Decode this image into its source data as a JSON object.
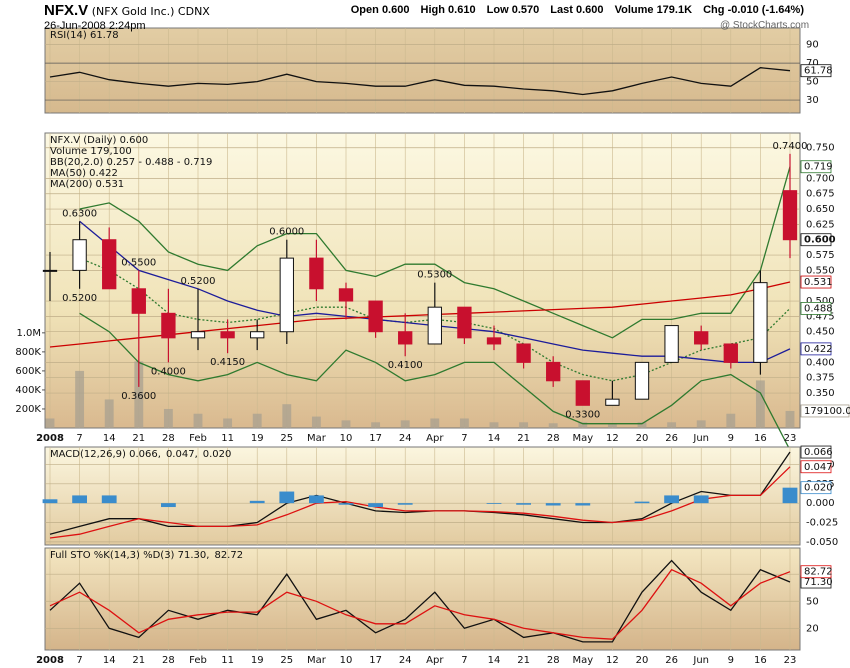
{
  "header": {
    "symbol": "NFX.V",
    "name": "(NFX Gold Inc.)",
    "exchange": "CDNX",
    "date": "26-Jun-2008 2:24pm",
    "quote": [
      [
        "Open",
        "0.600"
      ],
      [
        "High",
        "0.610"
      ],
      [
        "Low",
        "0.570"
      ],
      [
        "Last",
        "0.600"
      ],
      [
        "Volume",
        "179.1K"
      ],
      [
        "Chg",
        "-0.010 (-1.64%)"
      ]
    ],
    "watermark": "@ StockCharts.com"
  },
  "chart_data": [
    {
      "type": "line",
      "title": "RSI(14) 61.78",
      "ylim": [
        16,
        108
      ],
      "yticks": [
        30,
        50,
        70,
        90
      ],
      "grid": true,
      "series": [
        {
          "kind": "line",
          "color": "#111111",
          "end_label": "61.78",
          "values": [
            55,
            60,
            52,
            48,
            45,
            48,
            47,
            50,
            58,
            50,
            48,
            45,
            45,
            52,
            46,
            45,
            42,
            40,
            36,
            40,
            48,
            55,
            48,
            45,
            65,
            61.78
          ]
        }
      ]
    },
    {
      "type": "candlestick",
      "title": "NFX.V (Daily) 0.600",
      "legend": "stacked",
      "grid": true,
      "x_labels": true,
      "categories": [
        "2008",
        "7",
        "14",
        "21",
        "28",
        "Feb",
        "11",
        "19",
        "25",
        "Mar",
        "10",
        "17",
        "24",
        "Apr",
        "7",
        "14",
        "21",
        "28",
        "May",
        "12",
        "20",
        "26",
        "Jun",
        "9",
        "16",
        "23"
      ],
      "open": [
        0.55,
        0.55,
        0.6,
        0.52,
        0.48,
        0.44,
        0.45,
        0.44,
        0.45,
        0.57,
        0.52,
        0.5,
        0.45,
        0.43,
        0.49,
        0.44,
        0.43,
        0.4,
        0.37,
        0.33,
        0.34,
        0.4,
        0.45,
        0.43,
        0.4,
        0.68
      ],
      "high": [
        0.58,
        0.63,
        0.62,
        0.55,
        0.52,
        0.52,
        0.47,
        0.47,
        0.6,
        0.6,
        0.53,
        0.5,
        0.48,
        0.53,
        0.49,
        0.46,
        0.43,
        0.41,
        0.37,
        0.37,
        0.4,
        0.46,
        0.46,
        0.43,
        0.55,
        0.74
      ],
      "low": [
        0.5,
        0.52,
        0.52,
        0.36,
        0.4,
        0.42,
        0.415,
        0.42,
        0.43,
        0.5,
        0.47,
        0.44,
        0.41,
        0.43,
        0.43,
        0.42,
        0.39,
        0.36,
        0.33,
        0.33,
        0.34,
        0.4,
        0.42,
        0.39,
        0.38,
        0.57
      ],
      "close": [
        0.55,
        0.6,
        0.52,
        0.48,
        0.44,
        0.45,
        0.44,
        0.45,
        0.57,
        0.52,
        0.5,
        0.45,
        0.43,
        0.49,
        0.44,
        0.43,
        0.4,
        0.37,
        0.33,
        0.34,
        0.4,
        0.46,
        0.43,
        0.4,
        0.53,
        0.6
      ],
      "close_label": "0.600",
      "high_labels": [
        null,
        "0.6300",
        null,
        "0.5500",
        null,
        "0.5200",
        null,
        null,
        "0.6000",
        null,
        null,
        null,
        null,
        "0.5300",
        null,
        null,
        null,
        null,
        null,
        null,
        null,
        null,
        null,
        null,
        null,
        "0.7400"
      ],
      "low_labels": [
        null,
        "0.5200",
        null,
        "0.3600",
        "0.4000",
        null,
        "0.4150",
        null,
        null,
        null,
        null,
        null,
        "0.4100",
        null,
        null,
        null,
        null,
        null,
        "0.3300",
        null,
        null,
        null,
        null,
        null,
        null,
        null
      ],
      "ylim": [
        0.293,
        0.774
      ],
      "yticks": [
        {
          "value": 0.35,
          "label": "0.350"
        },
        0.375,
        {
          "value": 0.4,
          "label": "0.400"
        },
        {
          "value": 0.45,
          "label": "0.450"
        },
        0.475,
        {
          "value": 0.5,
          "label": "0.500"
        },
        {
          "value": 0.55,
          "label": "0.550"
        },
        0.575,
        0.625,
        {
          "value": 0.65,
          "label": "0.650"
        },
        0.675,
        {
          "value": 0.7,
          "label": "0.700"
        },
        {
          "value": 0.75,
          "label": "0.750"
        }
      ],
      "y2lim": [
        0,
        3100000
      ],
      "y2ticks": [
        {
          "value": 200000,
          "label": "200K"
        },
        {
          "value": 400000,
          "label": "400K"
        },
        {
          "value": 600000,
          "label": "600K"
        },
        {
          "value": 800000,
          "label": "800K"
        },
        {
          "value": 1000000,
          "label": "1.0M"
        }
      ],
      "series": [
        {
          "name": "Volume 179,100",
          "kind": "bar",
          "axis": "y2",
          "color": "#a8a090",
          "end_label": "179100.0",
          "values": [
            100000,
            600000,
            300000,
            700000,
            200000,
            150000,
            100000,
            150000,
            250000,
            120000,
            80000,
            60000,
            80000,
            100000,
            100000,
            60000,
            60000,
            50000,
            60000,
            40000,
            60000,
            60000,
            80000,
            150000,
            500000,
            179100
          ]
        },
        {
          "name": "BB(20,2.0) 0.257 - 0.488 - 0.719",
          "kind": "line",
          "color": "#2f7a2f",
          "end_label": "0.719",
          "values": [
            null,
            0.65,
            0.66,
            0.63,
            0.58,
            0.56,
            0.55,
            0.59,
            0.61,
            0.61,
            0.55,
            0.54,
            0.56,
            0.56,
            0.53,
            0.52,
            0.5,
            0.48,
            0.46,
            0.44,
            0.47,
            0.47,
            0.48,
            0.48,
            0.55,
            0.719
          ]
        },
        {
          "kind": "line",
          "color": "#2f7a2f",
          "dash": true,
          "end_label": "0.488",
          "values": [
            null,
            0.57,
            0.55,
            0.52,
            0.48,
            0.47,
            0.465,
            0.47,
            0.48,
            0.49,
            0.49,
            0.47,
            0.465,
            0.47,
            0.465,
            0.455,
            0.43,
            0.4,
            0.38,
            0.37,
            0.38,
            0.4,
            0.42,
            0.43,
            0.44,
            0.488
          ]
        },
        {
          "kind": "line",
          "color": "#2f7a2f",
          "values": [
            null,
            0.48,
            0.45,
            0.4,
            0.38,
            0.37,
            0.38,
            0.4,
            0.38,
            0.37,
            0.42,
            0.4,
            0.37,
            0.38,
            0.4,
            0.4,
            0.36,
            0.32,
            0.3,
            0.3,
            0.3,
            0.33,
            0.37,
            0.38,
            0.35,
            0.257
          ]
        },
        {
          "name": "MA(50) 0.422",
          "kind": "line",
          "color": "#1c1c9a",
          "end_label": "0.422",
          "values": [
            null,
            0.63,
            0.59,
            0.55,
            0.535,
            0.52,
            0.5,
            0.485,
            0.475,
            0.48,
            0.475,
            0.47,
            0.465,
            0.46,
            0.455,
            0.45,
            0.44,
            0.43,
            0.42,
            0.415,
            0.41,
            0.41,
            0.405,
            0.4,
            0.4,
            0.422
          ]
        },
        {
          "name": "MA(200) 0.531",
          "kind": "line",
          "color": "#cc0000",
          "end_label": "0.531",
          "values": [
            0.425,
            0.43,
            0.435,
            0.44,
            0.445,
            0.45,
            0.455,
            0.46,
            0.465,
            0.47,
            0.472,
            0.474,
            0.476,
            0.478,
            0.48,
            0.482,
            0.484,
            0.486,
            0.488,
            0.49,
            0.495,
            0.5,
            0.505,
            0.51,
            0.52,
            0.531
          ]
        }
      ]
    },
    {
      "type": "line",
      "legend": "inline",
      "grid": true,
      "ylim": [
        -0.054,
        0.0725
      ],
      "yticks": [
        {
          "value": -0.05,
          "label": "-0.050"
        },
        -0.025,
        {
          "value": 0,
          "label": "0.000"
        },
        0.025,
        {
          "value": 0.05,
          "label": "0.050"
        }
      ],
      "series": [
        {
          "name": "MACD(12,26,9) 0.066,",
          "kind": "line",
          "color": "#111111",
          "end_label": "0.066",
          "values": [
            -0.04,
            -0.03,
            -0.02,
            -0.02,
            -0.03,
            -0.03,
            -0.03,
            -0.025,
            0,
            0.01,
            0,
            -0.01,
            -0.012,
            -0.01,
            -0.01,
            -0.012,
            -0.015,
            -0.02,
            -0.025,
            -0.025,
            -0.02,
            0,
            0.015,
            0.01,
            0.01,
            0.066
          ]
        },
        {
          "name": "0.047,",
          "kind": "line",
          "color": "#dd1111",
          "end_label": "0.047",
          "values": [
            -0.045,
            -0.04,
            -0.03,
            -0.02,
            -0.025,
            -0.03,
            -0.03,
            -0.028,
            -0.015,
            0,
            0.002,
            -0.005,
            -0.01,
            -0.01,
            -0.01,
            -0.011,
            -0.013,
            -0.017,
            -0.022,
            -0.025,
            -0.022,
            -0.01,
            0.005,
            0.01,
            0.01,
            0.047
          ]
        },
        {
          "name": "0.020",
          "kind": "bar",
          "color": "#3a8ccc",
          "end_label": "0.020",
          "values": [
            0.005,
            0.01,
            0.01,
            0,
            -0.005,
            0,
            0,
            0.003,
            0.015,
            0.01,
            -0.002,
            -0.005,
            -0.002,
            0,
            0,
            -0.001,
            -0.002,
            -0.003,
            -0.003,
            0,
            0.002,
            0.01,
            0.01,
            0,
            0,
            0.02
          ]
        }
      ]
    },
    {
      "type": "line",
      "legend": "inline",
      "grid": true,
      "x_labels": true,
      "ylim": [
        -4,
        109
      ],
      "yticks": [
        20,
        50,
        80
      ],
      "series": [
        {
          "name": "Full STO %K(14,3) %D(3) 71.30,",
          "kind": "line",
          "color": "#111111",
          "end_label": "71.30",
          "values": [
            40,
            70,
            20,
            10,
            40,
            30,
            40,
            35,
            80,
            30,
            40,
            15,
            30,
            60,
            20,
            30,
            10,
            15,
            5,
            5,
            60,
            95,
            60,
            40,
            85,
            71.3
          ]
        },
        {
          "name": "82.72",
          "kind": "line",
          "color": "#dd1111",
          "end_label": "82.72",
          "values": [
            45,
            60,
            40,
            15,
            30,
            35,
            38,
            38,
            60,
            50,
            35,
            25,
            25,
            45,
            35,
            30,
            20,
            15,
            10,
            8,
            40,
            85,
            70,
            45,
            70,
            82.72
          ]
        }
      ]
    }
  ]
}
